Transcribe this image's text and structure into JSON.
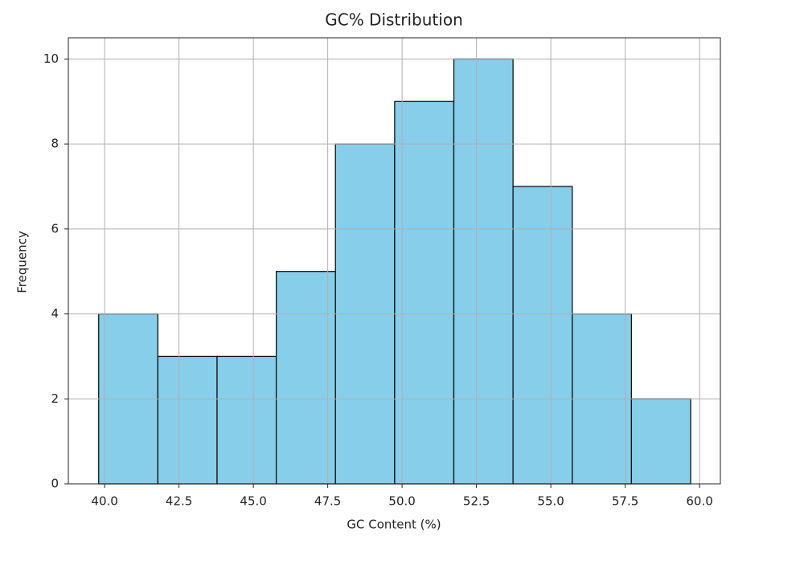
{
  "chart_data": {
    "type": "histogram",
    "title": "GC% Distribution",
    "xlabel": "GC Content (%)",
    "ylabel": "Frequency",
    "bins": [
      39.8,
      41.79,
      43.78,
      45.77,
      47.76,
      49.75,
      51.74,
      53.73,
      55.72,
      57.71,
      59.7
    ],
    "values": [
      4,
      3,
      3,
      5,
      8,
      9,
      10,
      7,
      4,
      2
    ],
    "color": "#87ceeb",
    "edgecolor": "#111111",
    "xlim": [
      38.78,
      60.7
    ],
    "ylim": [
      0,
      10.5
    ],
    "xticks": [
      {
        "value": 40,
        "label": "40.0"
      },
      42.5,
      {
        "value": 45,
        "label": "45.0"
      },
      47.5,
      {
        "value": 50,
        "label": "50.0"
      },
      52.5,
      {
        "value": 55,
        "label": "55.0"
      },
      57.5,
      {
        "value": 60,
        "label": "60.0"
      }
    ],
    "yticks": [
      0,
      2,
      4,
      6,
      8,
      10
    ],
    "grid": true
  }
}
